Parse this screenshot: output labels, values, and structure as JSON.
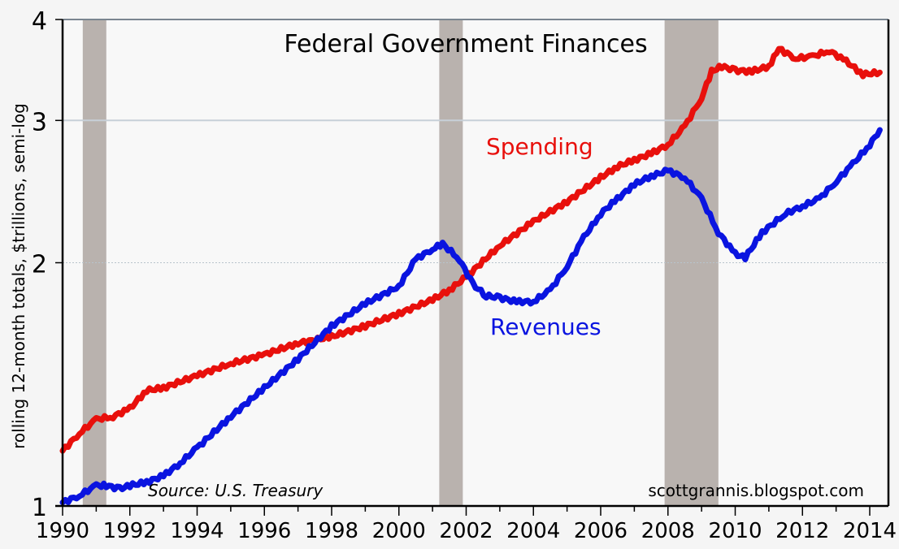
{
  "chart_data": {
    "type": "line",
    "title": "Federal Government Finances",
    "xlabel": "",
    "ylabel": "rolling 12-month totals, $trillions, semi-log",
    "yscale": "log",
    "xlim": [
      1990,
      2014.6
    ],
    "ylim": [
      1,
      4
    ],
    "x_ticks": [
      1990,
      1992,
      1994,
      1996,
      1998,
      2000,
      2002,
      2004,
      2006,
      2008,
      2010,
      2012,
      2014
    ],
    "y_ticks": [
      1,
      2,
      3,
      4
    ],
    "gridlines_y": [
      2,
      3
    ],
    "recessions": [
      [
        1990.6,
        1991.3
      ],
      [
        2001.2,
        2001.9
      ],
      [
        2007.9,
        2009.5
      ]
    ],
    "annotations": {
      "source": "Source: U.S. Treasury",
      "credit": "scottgrannis.blogspot.com"
    },
    "series": [
      {
        "name": "Spending",
        "color": "#e8100c",
        "x": [
          1990.0,
          1990.5,
          1991.0,
          1991.5,
          1992.0,
          1992.5,
          1993.0,
          1994.0,
          1995.0,
          1996.0,
          1997.0,
          1998.0,
          1999.0,
          2000.0,
          2001.0,
          2001.5,
          2002.0,
          2003.0,
          2004.0,
          2005.0,
          2006.0,
          2006.5,
          2007.0,
          2007.5,
          2008.0,
          2008.5,
          2009.0,
          2009.3,
          2009.6,
          2010.0,
          2010.5,
          2011.0,
          2011.3,
          2011.8,
          2012.3,
          2012.8,
          2013.3,
          2013.8,
          2014.3
        ],
        "values": [
          1.17,
          1.23,
          1.28,
          1.29,
          1.32,
          1.39,
          1.4,
          1.45,
          1.5,
          1.54,
          1.59,
          1.62,
          1.67,
          1.73,
          1.8,
          1.85,
          1.92,
          2.1,
          2.25,
          2.38,
          2.55,
          2.63,
          2.68,
          2.73,
          2.8,
          2.95,
          3.2,
          3.45,
          3.5,
          3.46,
          3.45,
          3.5,
          3.68,
          3.58,
          3.6,
          3.66,
          3.55,
          3.42,
          3.44
        ]
      },
      {
        "name": "Revenues",
        "color": "#0a14e0",
        "x": [
          1990.0,
          1990.5,
          1991.0,
          1991.3,
          1991.7,
          1992.0,
          1992.5,
          1993.0,
          1993.5,
          1994.0,
          1995.0,
          1996.0,
          1997.0,
          1998.0,
          1999.0,
          2000.0,
          2000.5,
          2001.0,
          2001.3,
          2001.8,
          2002.2,
          2002.6,
          2003.0,
          2003.5,
          2004.0,
          2004.5,
          2005.0,
          2005.5,
          2006.0,
          2006.5,
          2007.0,
          2007.5,
          2008.0,
          2008.5,
          2009.0,
          2009.5,
          2010.0,
          2010.3,
          2010.8,
          2011.5,
          2012.0,
          2012.5,
          2013.0,
          2013.5,
          2014.0,
          2014.3
        ],
        "values": [
          1.01,
          1.03,
          1.06,
          1.06,
          1.05,
          1.06,
          1.07,
          1.09,
          1.13,
          1.18,
          1.29,
          1.4,
          1.52,
          1.67,
          1.78,
          1.87,
          2.02,
          2.08,
          2.11,
          2.02,
          1.88,
          1.82,
          1.81,
          1.79,
          1.79,
          1.85,
          1.98,
          2.15,
          2.3,
          2.4,
          2.5,
          2.56,
          2.6,
          2.55,
          2.4,
          2.18,
          2.05,
          2.03,
          2.18,
          2.3,
          2.35,
          2.4,
          2.52,
          2.65,
          2.8,
          2.92
        ]
      }
    ]
  }
}
